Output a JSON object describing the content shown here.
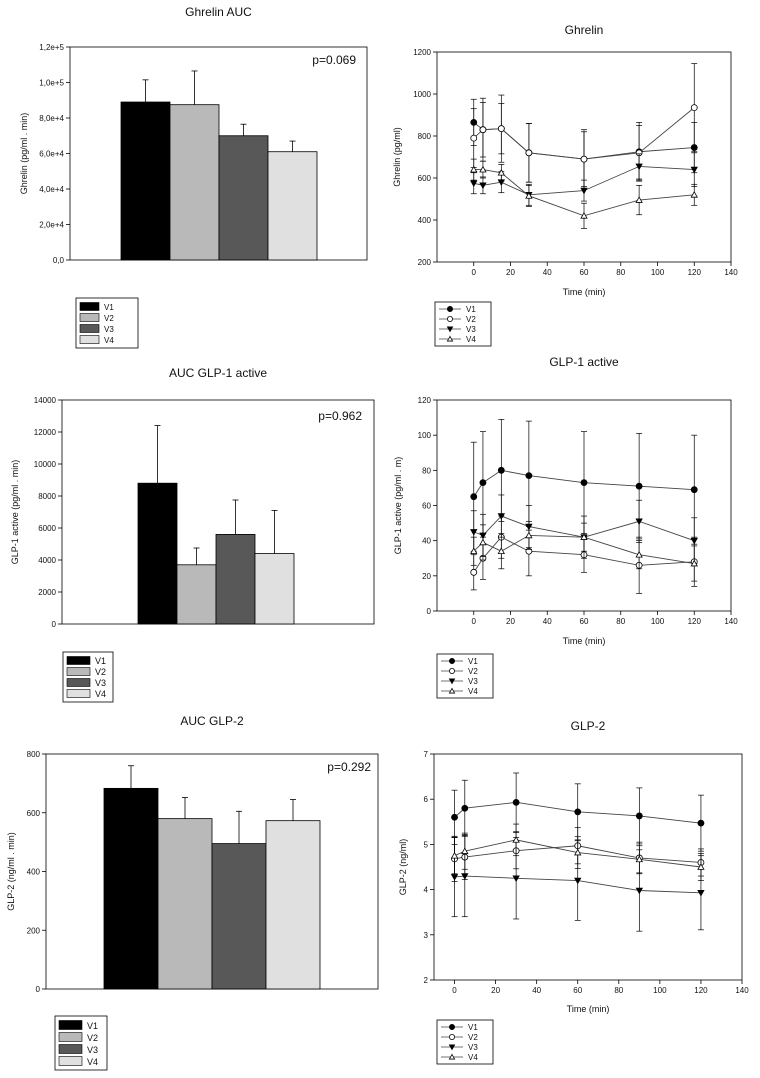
{
  "chart_data": [
    {
      "type": "bar",
      "title": "Ghrelin AUC",
      "ylabel": "Ghrelin (pg/ml . min)",
      "xlabel": "",
      "ylim": [
        0,
        120000
      ],
      "yticks": [
        0,
        20000,
        40000,
        60000,
        80000,
        100000,
        120000
      ],
      "ytick_labels": [
        "0,0",
        "2,0e+4",
        "4,0e+4",
        "6,0e+4",
        "8,0e+4",
        "1,0e+5",
        "1,2e+5"
      ],
      "annotation": "p=0.069",
      "categories": [
        "V1",
        "V2",
        "V3",
        "V4"
      ],
      "values": [
        89000,
        87500,
        70000,
        61000
      ],
      "errors": [
        12500,
        19000,
        6500,
        6000
      ],
      "colors": [
        "#000000",
        "#b9b9b9",
        "#585858",
        "#e0e0e0"
      ],
      "legend": [
        "V1",
        "V2",
        "V3",
        "V4"
      ]
    },
    {
      "type": "line",
      "title": "Ghrelin",
      "ylabel": "Ghrelin (pg/ml)",
      "xlabel": "Time (min)",
      "xlim": [
        -20,
        140
      ],
      "ylim": [
        200,
        1200
      ],
      "xticks": [
        0,
        20,
        40,
        60,
        80,
        100,
        120,
        140
      ],
      "yticks": [
        200,
        400,
        600,
        800,
        1000,
        1200
      ],
      "legend": [
        "V1",
        "V2",
        "V3",
        "V4"
      ],
      "series": [
        {
          "name": "V1",
          "marker": "circle-filled",
          "x": [
            0,
            5,
            15,
            30,
            60,
            90,
            120
          ],
          "y": [
            865,
            830,
            835,
            720,
            690,
            725,
            745
          ],
          "err": [
            110,
            130,
            120,
            140,
            140,
            140,
            120
          ]
        },
        {
          "name": "V2",
          "marker": "circle-open",
          "x": [
            0,
            5,
            15,
            30,
            60,
            90,
            120
          ],
          "y": [
            790,
            830,
            835,
            720,
            690,
            720,
            935
          ],
          "err": [
            140,
            150,
            160,
            140,
            130,
            130,
            210
          ]
        },
        {
          "name": "V3",
          "marker": "triangle-down-filled",
          "x": [
            0,
            5,
            15,
            30,
            60,
            90,
            120
          ],
          "y": [
            575,
            565,
            580,
            520,
            540,
            655,
            640
          ],
          "err": [
            50,
            40,
            50,
            50,
            50,
            60,
            80
          ]
        },
        {
          "name": "V4",
          "marker": "triangle-up-open",
          "x": [
            0,
            5,
            15,
            30,
            60,
            90,
            120
          ],
          "y": [
            640,
            640,
            625,
            515,
            420,
            495,
            520
          ],
          "err": [
            50,
            40,
            40,
            50,
            60,
            70,
            50
          ]
        }
      ]
    },
    {
      "type": "bar",
      "title": "AUC GLP-1 active",
      "ylabel": "GLP-1 active (pg/ml . min)",
      "xlabel": "",
      "ylim": [
        0,
        14000
      ],
      "yticks": [
        0,
        2000,
        4000,
        6000,
        8000,
        10000,
        12000,
        14000
      ],
      "ytick_labels": [
        "0",
        "2000",
        "4000",
        "6000",
        "8000",
        "10000",
        "12000",
        "14000"
      ],
      "annotation": "p=0.962",
      "categories": [
        "V1",
        "V2",
        "V3",
        "V4"
      ],
      "values": [
        8800,
        3700,
        5600,
        4400
      ],
      "errors": [
        3600,
        1050,
        2150,
        2700
      ],
      "colors": [
        "#000000",
        "#b9b9b9",
        "#585858",
        "#e0e0e0"
      ],
      "legend": [
        "V1",
        "V2",
        "V3",
        "V4"
      ]
    },
    {
      "type": "line",
      "title": "GLP-1 active",
      "ylabel": "GLP-1 active (pg/ml . m)",
      "xlabel": "Time (min)",
      "xlim": [
        -20,
        140
      ],
      "ylim": [
        0,
        120
      ],
      "xticks": [
        0,
        20,
        40,
        60,
        80,
        100,
        120,
        140
      ],
      "yticks": [
        0,
        20,
        40,
        60,
        80,
        100,
        120
      ],
      "legend": [
        "V1",
        "V2",
        "V3",
        "V4"
      ],
      "series": [
        {
          "name": "V1",
          "marker": "circle-filled",
          "x": [
            0,
            5,
            15,
            30,
            60,
            90,
            120
          ],
          "y": [
            65,
            73,
            80,
            77,
            73,
            71,
            69
          ],
          "err": [
            31,
            29,
            29,
            31,
            29,
            30,
            31
          ]
        },
        {
          "name": "V2",
          "marker": "circle-open",
          "x": [
            0,
            5,
            15,
            30,
            60,
            90,
            120
          ],
          "y": [
            22,
            30,
            42,
            34,
            32,
            26,
            28
          ],
          "err": [
            10,
            12,
            12,
            14,
            10,
            16,
            14
          ]
        },
        {
          "name": "V3",
          "marker": "triangle-down-filled",
          "x": [
            0,
            5,
            15,
            30,
            60,
            90,
            120
          ],
          "y": [
            45,
            43,
            54,
            48,
            42,
            51,
            40
          ],
          "err": [
            12,
            12,
            12,
            12,
            12,
            12,
            13
          ]
        },
        {
          "name": "V4",
          "marker": "triangle-up-open",
          "x": [
            0,
            5,
            15,
            30,
            60,
            90,
            120
          ],
          "y": [
            34,
            39,
            34,
            43,
            42,
            32,
            27
          ],
          "err": [
            8,
            10,
            10,
            8,
            8,
            8,
            10
          ]
        }
      ]
    },
    {
      "type": "bar",
      "title": "AUC GLP-2",
      "ylabel": "GLP-2 (ng/ml . min)",
      "xlabel": "",
      "ylim": [
        0,
        800
      ],
      "yticks": [
        0,
        200,
        400,
        600,
        800
      ],
      "ytick_labels": [
        "0",
        "200",
        "400",
        "600",
        "800"
      ],
      "annotation": "p=0.292",
      "categories": [
        "V1",
        "V2",
        "V3",
        "V4"
      ],
      "values": [
        683,
        580,
        495,
        573
      ],
      "errors": [
        77,
        72,
        110,
        72
      ],
      "colors": [
        "#000000",
        "#b9b9b9",
        "#585858",
        "#e0e0e0"
      ],
      "legend": [
        "V1",
        "V2",
        "V3",
        "V4"
      ]
    },
    {
      "type": "line",
      "title": "GLP-2",
      "ylabel": "GLP-2 (ng/ml)",
      "xlabel": "Time (min)",
      "xlim": [
        -10,
        140
      ],
      "ylim": [
        2,
        7
      ],
      "xticks": [
        0,
        20,
        40,
        60,
        80,
        100,
        120,
        140
      ],
      "yticks": [
        2,
        3,
        4,
        5,
        6,
        7
      ],
      "legend": [
        "V1",
        "V2",
        "V3",
        "V4"
      ],
      "series": [
        {
          "name": "V1",
          "marker": "circle-filled",
          "x": [
            0,
            5,
            30,
            60,
            90,
            120
          ],
          "y": [
            5.6,
            5.8,
            5.93,
            5.72,
            5.63,
            5.47
          ],
          "err": [
            0.6,
            0.62,
            0.65,
            0.62,
            0.62,
            0.62
          ]
        },
        {
          "name": "V2",
          "marker": "circle-open",
          "x": [
            0,
            5,
            30,
            60,
            90,
            120
          ],
          "y": [
            4.68,
            4.72,
            4.86,
            4.97,
            4.7,
            4.6
          ],
          "err": [
            0.5,
            0.5,
            0.4,
            0.4,
            0.35,
            0.3
          ]
        },
        {
          "name": "V3",
          "marker": "triangle-down-filled",
          "x": [
            0,
            5,
            30,
            60,
            90,
            120
          ],
          "y": [
            4.28,
            4.3,
            4.25,
            4.2,
            3.98,
            3.93
          ],
          "err": [
            0.88,
            0.9,
            0.9,
            0.88,
            0.9,
            0.82
          ]
        },
        {
          "name": "V4",
          "marker": "triangle-up-open",
          "x": [
            0,
            5,
            30,
            60,
            90,
            120
          ],
          "y": [
            4.75,
            4.85,
            5.1,
            4.82,
            4.67,
            4.5
          ],
          "err": [
            0.4,
            0.4,
            0.35,
            0.35,
            0.3,
            0.3
          ]
        }
      ]
    }
  ]
}
